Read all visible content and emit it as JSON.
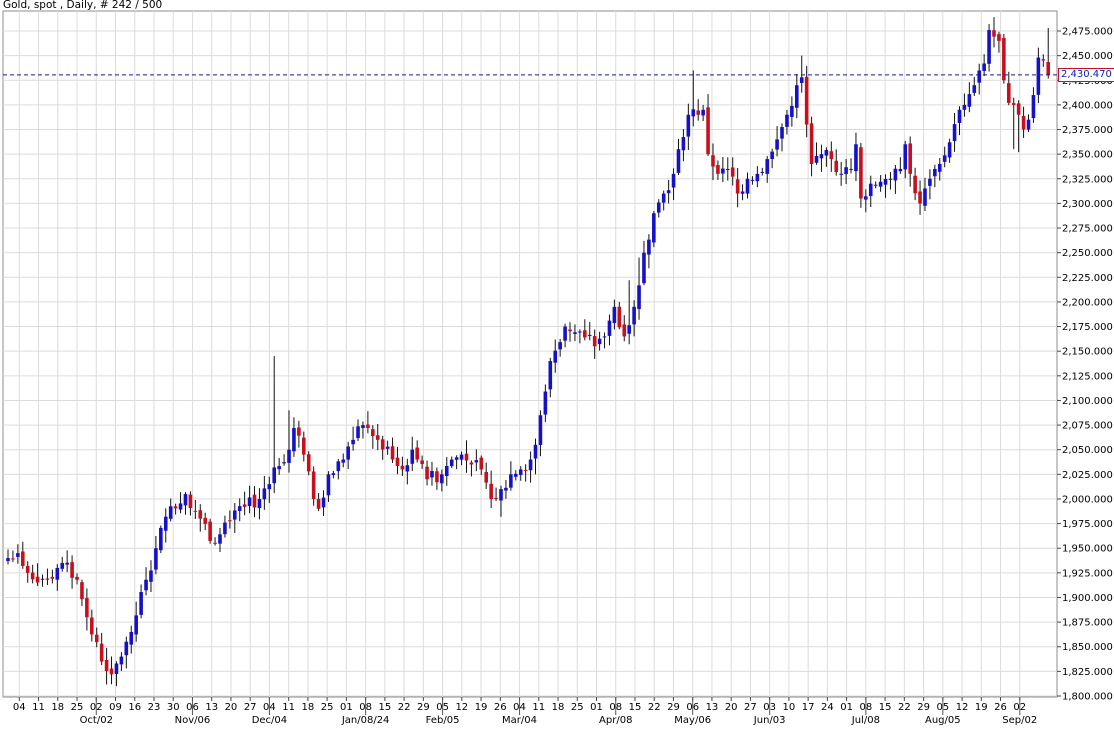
{
  "header": {
    "title": "Gold, spot , Daily, # 242 / 500"
  },
  "last_price": {
    "label": "2,430.470",
    "value": 2430.47
  },
  "colors": {
    "up": "#1411c8",
    "down": "#c8101c",
    "grid": "#dcdcdc",
    "last_line": "#1a1a8c",
    "last_box_border": "#c0102a"
  },
  "chart_data": {
    "type": "candlestick",
    "instrument": "Gold, spot",
    "timeframe": "Daily",
    "y_axis": {
      "min": 1800,
      "max": 2475,
      "ticks": [
        1800,
        1825,
        1850,
        1875,
        1900,
        1925,
        1950,
        1975,
        2000,
        2025,
        2050,
        2075,
        2100,
        2125,
        2150,
        2175,
        2200,
        2225,
        2250,
        2275,
        2300,
        2325,
        2350,
        2375,
        2400,
        2425,
        2450,
        2475
      ],
      "tick_labels": [
        "1,800.000",
        "1,825.000",
        "1,850.000",
        "1,875.000",
        "1,900.000",
        "1,925.000",
        "1,950.000",
        "1,975.000",
        "2,000.000",
        "2,025.000",
        "2,050.000",
        "2,075.000",
        "2,100.000",
        "2,125.000",
        "2,150.000",
        "2,175.000",
        "2,200.000",
        "2,225.000",
        "2,250.000",
        "2,275.000",
        "2,300.000",
        "2,325.000",
        "2,350.000",
        "2,375.000",
        "2,400.000",
        "2,425.000",
        "2,450.000",
        "2,475.000"
      ]
    },
    "x_axis": {
      "day_ticks": [
        "04",
        "11",
        "18",
        "25",
        "02",
        "09",
        "16",
        "23",
        "30",
        "06",
        "13",
        "20",
        "27",
        "04",
        "11",
        "18",
        "25",
        "01",
        "08",
        "15",
        "22",
        "29",
        "05",
        "12",
        "19",
        "26",
        "04",
        "11",
        "18",
        "25",
        "01",
        "08",
        "15",
        "22",
        "29",
        "06",
        "13",
        "20",
        "27",
        "03",
        "10",
        "17",
        "24",
        "01",
        "08",
        "15",
        "22",
        "29",
        "05",
        "12",
        "19",
        "26",
        "02"
      ],
      "month_labels": [
        {
          "label": "Oct/02",
          "tick_index": 4
        },
        {
          "label": "Nov/06",
          "tick_index": 9
        },
        {
          "label": "Dec/04",
          "tick_index": 13
        },
        {
          "label": "Jan/08/24",
          "tick_index": 18
        },
        {
          "label": "Feb/05",
          "tick_index": 22
        },
        {
          "label": "Mar/04",
          "tick_index": 26
        },
        {
          "label": "Apr/08",
          "tick_index": 31
        },
        {
          "label": "May/06",
          "tick_index": 35
        },
        {
          "label": "Jun/03",
          "tick_index": 39
        },
        {
          "label": "Jul/08",
          "tick_index": 44
        },
        {
          "label": "Aug/05",
          "tick_index": 48
        },
        {
          "label": "Sep/02",
          "tick_index": 52
        }
      ]
    },
    "grid": true,
    "last_value": 2430.47,
    "anchors": [
      [
        0,
        1940
      ],
      [
        2,
        1945
      ],
      [
        4,
        1925
      ],
      [
        8,
        1918
      ],
      [
        11,
        1935
      ],
      [
        14,
        1918
      ],
      [
        16,
        1880
      ],
      [
        19,
        1835
      ],
      [
        21,
        1822
      ],
      [
        23,
        1840
      ],
      [
        25,
        1865
      ],
      [
        28,
        1918
      ],
      [
        30,
        1950
      ],
      [
        32,
        1982
      ],
      [
        36,
        2005
      ],
      [
        39,
        1980
      ],
      [
        42,
        1955
      ],
      [
        45,
        1978
      ],
      [
        48,
        1992
      ],
      [
        51,
        2000
      ],
      [
        54,
        2032
      ],
      [
        57,
        2050
      ],
      [
        58,
        2072
      ],
      [
        60,
        2045
      ],
      [
        62,
        2000
      ],
      [
        63,
        1990
      ],
      [
        65,
        2025
      ],
      [
        68,
        2040
      ],
      [
        70,
        2060
      ],
      [
        72,
        2075
      ],
      [
        73,
        2072
      ],
      [
        75,
        2060
      ],
      [
        78,
        2040
      ],
      [
        80,
        2030
      ],
      [
        82,
        2050
      ],
      [
        83,
        2040
      ],
      [
        85,
        2020
      ],
      [
        88,
        2025
      ],
      [
        90,
        2040
      ],
      [
        92,
        2045
      ],
      [
        94,
        2035
      ],
      [
        96,
        2030
      ],
      [
        98,
        2000
      ],
      [
        100,
        2010
      ],
      [
        102,
        2025
      ],
      [
        104,
        2030
      ],
      [
        106,
        2040
      ],
      [
        107,
        2055
      ],
      [
        108,
        2085
      ],
      [
        110,
        2140
      ],
      [
        113,
        2175
      ],
      [
        116,
        2170
      ],
      [
        119,
        2155
      ],
      [
        121,
        2165
      ],
      [
        123,
        2195
      ],
      [
        125,
        2165
      ],
      [
        127,
        2195
      ],
      [
        129,
        2250
      ],
      [
        131,
        2290
      ],
      [
        133,
        2310
      ],
      [
        135,
        2330
      ],
      [
        136,
        2355
      ],
      [
        138,
        2390
      ],
      [
        140,
        2390
      ],
      [
        141,
        2395
      ],
      [
        142,
        2350
      ],
      [
        144,
        2330
      ],
      [
        146,
        2335
      ],
      [
        148,
        2310
      ],
      [
        150,
        2325
      ],
      [
        152,
        2330
      ],
      [
        154,
        2345
      ],
      [
        156,
        2365
      ],
      [
        158,
        2390
      ],
      [
        160,
        2420
      ],
      [
        161,
        2428
      ],
      [
        162,
        2380
      ],
      [
        163,
        2340
      ],
      [
        165,
        2350
      ],
      [
        167,
        2345
      ],
      [
        169,
        2330
      ],
      [
        171,
        2335
      ],
      [
        172,
        2360
      ],
      [
        173,
        2305
      ],
      [
        175,
        2320
      ],
      [
        177,
        2322
      ],
      [
        179,
        2325
      ],
      [
        181,
        2335
      ],
      [
        182,
        2360
      ],
      [
        183,
        2330
      ],
      [
        185,
        2300
      ],
      [
        187,
        2325
      ],
      [
        189,
        2340
      ],
      [
        191,
        2362
      ],
      [
        193,
        2395
      ],
      [
        194,
        2400
      ],
      [
        196,
        2420
      ],
      [
        198,
        2442
      ],
      [
        199,
        2476
      ],
      [
        201,
        2465
      ],
      [
        202,
        2425
      ],
      [
        203,
        2402
      ],
      [
        204,
        2400
      ],
      [
        205,
        2390
      ],
      [
        206,
        2375
      ],
      [
        207,
        2385
      ],
      [
        208,
        2410
      ],
      [
        209,
        2448
      ],
      [
        210,
        2445
      ],
      [
        211,
        2430
      ]
    ]
  }
}
